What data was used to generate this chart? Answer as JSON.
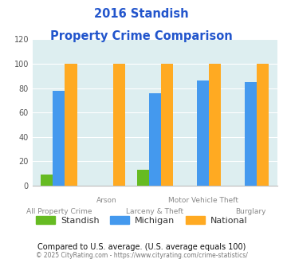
{
  "title_line1": "2016 Standish",
  "title_line2": "Property Crime Comparison",
  "title_color": "#2255cc",
  "standish_color": "#66bb22",
  "michigan_color": "#4499ee",
  "national_color": "#ffaa22",
  "ylim": [
    0,
    120
  ],
  "yticks": [
    0,
    20,
    40,
    60,
    80,
    100,
    120
  ],
  "bg_color": "#ddeef0",
  "note_text": "Compared to U.S. average. (U.S. average equals 100)",
  "footer_text": "© 2025 CityRating.com - https://www.cityrating.com/crime-statistics/",
  "note_color": "#111111",
  "footer_color": "#777777",
  "footer_link_color": "#3366cc",
  "bar_data": {
    "All Property Crime": [
      9,
      78,
      100
    ],
    "Arson": [
      0,
      0,
      100
    ],
    "Larceny & Theft": [
      13,
      76,
      100
    ],
    "Motor Vehicle Theft": [
      0,
      86,
      100
    ],
    "Burglary": [
      0,
      85,
      100
    ]
  },
  "categories": [
    "All Property Crime",
    "Arson",
    "Larceny & Theft",
    "Motor Vehicle Theft",
    "Burglary"
  ],
  "top_labels": {
    "1": "Arson",
    "3": "Motor Vehicle Theft"
  },
  "bot_labels": {
    "0": "All Property Crime",
    "2": "Larceny & Theft",
    "4": "Burglary"
  }
}
